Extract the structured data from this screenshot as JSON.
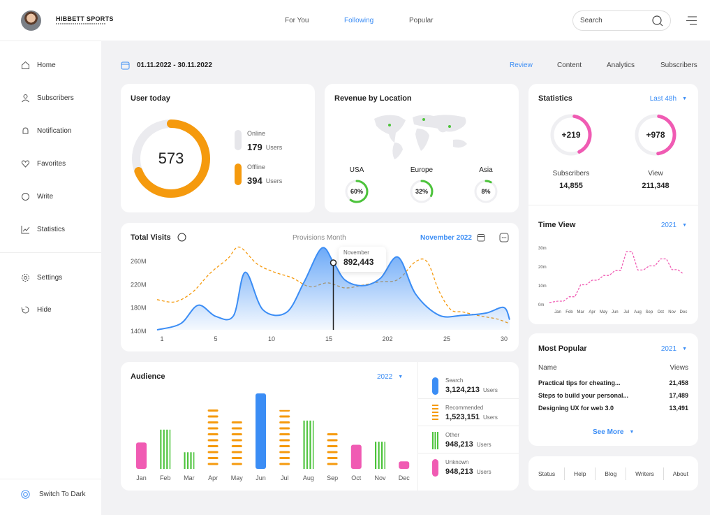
{
  "brand": {
    "name": "HIBBETT SPORTS",
    "tagline": "",
    "accent": "#3b8df5"
  },
  "topnav": {
    "tabs": [
      "For You",
      "Following",
      "Popular"
    ],
    "active": "Following",
    "search_placeholder": "Search"
  },
  "sidebar": {
    "items": [
      {
        "label": "Home",
        "icon": "home-icon"
      },
      {
        "label": "Subscribers",
        "icon": "user-icon"
      },
      {
        "label": "Notification",
        "icon": "bell-icon"
      },
      {
        "label": "Favorites",
        "icon": "heart-icon"
      },
      {
        "label": "Write",
        "icon": "pen-icon"
      },
      {
        "label": "Statistics",
        "icon": "chart-icon"
      }
    ],
    "secondary": [
      {
        "label": "Settings",
        "icon": "gear-icon"
      },
      {
        "label": "Hide",
        "icon": "hide-icon"
      }
    ],
    "dark_toggle": "Switch To Dark"
  },
  "header": {
    "date_range": "01.11.2022 - 30.11.2022",
    "tabs": [
      "Review",
      "Content",
      "Analytics",
      "Subscribers"
    ],
    "active": "Review"
  },
  "user_today": {
    "title": "User today",
    "total": "573",
    "online_label": "Online",
    "online_value": "179",
    "online_unit": "Users",
    "offline_label": "Offline",
    "offline_value": "394",
    "offline_unit": "Users",
    "offline_fraction": 0.69,
    "color_online": "#e6e6ea",
    "color_offline": "#f59a0e"
  },
  "revenue": {
    "title": "Revenue by Location",
    "regions": [
      {
        "name": "USA",
        "percent": "60%",
        "fraction": 0.6
      },
      {
        "name": "Europe",
        "percent": "32%",
        "fraction": 0.32
      },
      {
        "name": "Asia",
        "percent": "8%",
        "fraction": 0.08
      }
    ],
    "ring_color": "#4cc33b"
  },
  "statistics": {
    "title": "Statistics",
    "period": "Last 48h",
    "items": [
      {
        "badge": "+219",
        "label": "Subscribers",
        "value": "14,855",
        "fraction": 0.4
      },
      {
        "badge": "+978",
        "label": "View",
        "value": "211,348",
        "fraction": 0.45
      }
    ],
    "ring_color": "#f05bb3"
  },
  "total_visits": {
    "title": "Total Visits",
    "subtitle": "Provisions Month",
    "period": "November 2022",
    "tooltip_label": "November",
    "tooltip_value": "892,443"
  },
  "time_view": {
    "title": "Time View",
    "period": "2021"
  },
  "audience": {
    "title": "Audience",
    "period": "2022"
  },
  "audience_sources": [
    {
      "label": "Search",
      "value": "3,124,213",
      "unit": "Users",
      "color": "#3b8df5",
      "style": "solid"
    },
    {
      "label": "Recommended",
      "value": "1,523,151",
      "unit": "Users",
      "color": "#f59a0e",
      "style": "dash"
    },
    {
      "label": "Other",
      "value": "948,213",
      "unit": "Users",
      "color": "#4cc33b",
      "style": "stripe"
    },
    {
      "label": "Unknown",
      "value": "948,213",
      "unit": "Users",
      "color": "#f05bb3",
      "style": "solid"
    }
  ],
  "most_popular": {
    "title": "Most Popular",
    "period": "2021",
    "col_name": "Name",
    "col_views": "Views",
    "rows": [
      {
        "name": "Practical tips for cheating...",
        "views": "21,458"
      },
      {
        "name": "Steps to build your personal...",
        "views": "17,489"
      },
      {
        "name": "Designing UX for web 3.0",
        "views": "13,491"
      }
    ],
    "see_more": "See More"
  },
  "footer": {
    "links": [
      "Status",
      "Help",
      "Blog",
      "Writers",
      "About"
    ]
  },
  "chart_data": [
    {
      "type": "area",
      "x_ticks": [
        "1",
        "5",
        "10",
        "15",
        "202",
        "25",
        "30"
      ],
      "y_ticks": [
        "260M",
        "220M",
        "180M",
        "140M"
      ],
      "ylim": [
        140,
        265
      ],
      "xlim": [
        0,
        30
      ],
      "series": [
        {
          "x": [
            0,
            2,
            3.5,
            5,
            6.5,
            7.5,
            9,
            11,
            12.5,
            14,
            15,
            16,
            17.5,
            19,
            20.5,
            22,
            24,
            26,
            28,
            29.5,
            30
          ],
          "values": [
            140,
            151,
            184,
            164,
            165,
            243,
            176,
            171,
            225,
            286,
            261,
            229,
            219,
            232,
            270,
            204,
            166,
            166,
            170,
            180,
            158
          ],
          "style": "area",
          "color": "#3b8df5"
        },
        {
          "x": [
            0,
            1.5,
            3,
            4.5,
            6,
            7,
            8.5,
            10,
            11.5,
            13,
            14.5,
            16,
            17.5,
            19,
            20.5,
            22,
            23,
            24,
            25,
            26,
            27,
            28,
            29,
            30
          ],
          "values": [
            194,
            190,
            207,
            241,
            267,
            288,
            258,
            243,
            233,
            217,
            224,
            215,
            220,
            226,
            230,
            262,
            261,
            209,
            176,
            172,
            167,
            163,
            159,
            151
          ],
          "style": "dashed",
          "color": "#f59a0e"
        }
      ],
      "highlight": {
        "x": 15,
        "value": "892,443"
      }
    },
    {
      "type": "line",
      "title": "Time View",
      "categories": [
        "Jan",
        "Feb",
        "Mar",
        "Apr",
        "May",
        "Jun",
        "Jul",
        "Aug",
        "Sep",
        "Oct",
        "Nov",
        "Dec"
      ],
      "y_ticks": [
        "30m",
        "20m",
        "10m",
        "0m"
      ],
      "ylim": [
        0,
        30
      ],
      "values": [
        1.5,
        3.8,
        10.2,
        12.6,
        15.1,
        17.7,
        27.7,
        18.0,
        20.2,
        23.9,
        18.2,
        15.9
      ],
      "style": "dashed",
      "color": "#f05bb3"
    },
    {
      "type": "bar",
      "title": "Audience",
      "categories": [
        "Jan",
        "Feb",
        "Mar",
        "Apr",
        "May",
        "Jun",
        "Jul",
        "Aug",
        "Sep",
        "Oct",
        "Nov",
        "Dec"
      ],
      "values": [
        35,
        52,
        22,
        80,
        68,
        100,
        78,
        64,
        48,
        32,
        36,
        10
      ],
      "styles": [
        "solid",
        "stripe",
        "stripe",
        "dash",
        "dash",
        "solid",
        "dash",
        "stripe",
        "dash",
        "solid",
        "stripe",
        "solid"
      ],
      "colors": [
        "#f05bb3",
        "#4cc33b",
        "#4cc33b",
        "#f59a0e",
        "#f59a0e",
        "#3b8df5",
        "#f59a0e",
        "#4cc33b",
        "#f59a0e",
        "#f05bb3",
        "#4cc33b",
        "#f05bb3"
      ]
    }
  ]
}
